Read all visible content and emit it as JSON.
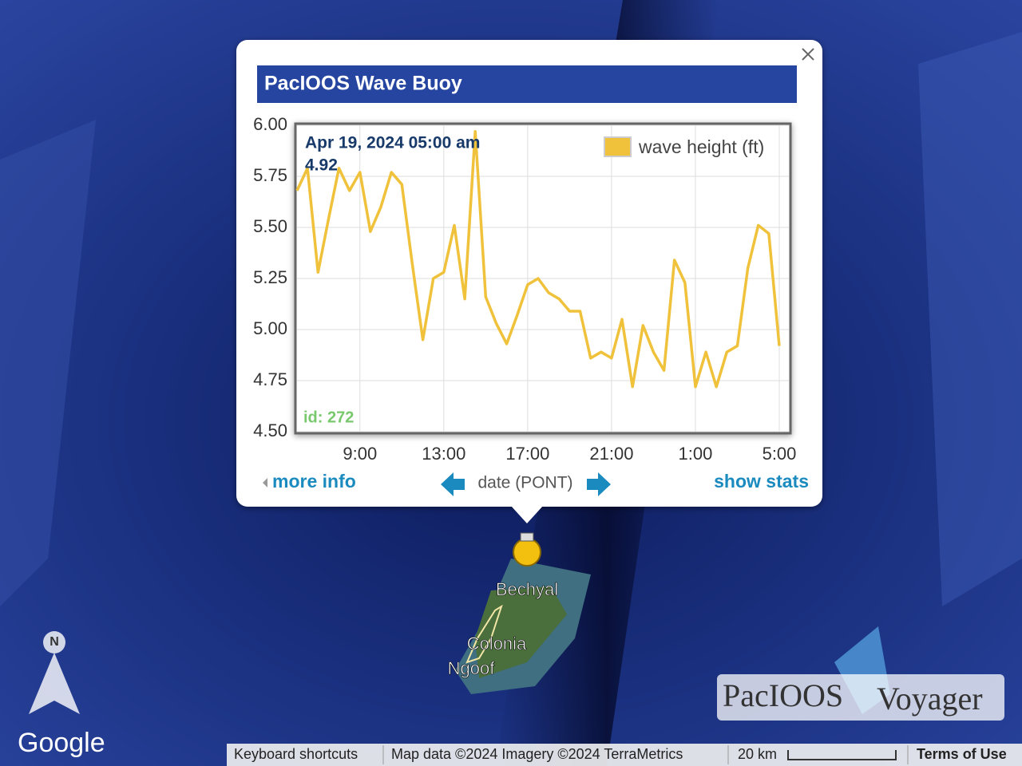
{
  "chart_data": {
    "type": "line",
    "title": "PacIOOS Wave Buoy",
    "categories": [
      null,
      null,
      null,
      null,
      null,
      null,
      "9:00",
      null,
      null,
      null,
      null,
      null,
      null,
      null,
      "13:00",
      null,
      null,
      null,
      null,
      null,
      null,
      null,
      "17:00",
      null,
      null,
      null,
      null,
      null,
      null,
      null,
      "21:00",
      null,
      null,
      null,
      null,
      null,
      null,
      null,
      "1:00",
      null,
      null,
      null,
      null,
      null,
      null,
      null,
      "5:00"
    ],
    "series": [
      {
        "name": "wave height (ft)",
        "color": "#f0c23c",
        "values": [
          5.68,
          5.79,
          5.28,
          5.54,
          5.79,
          5.68,
          5.77,
          5.48,
          5.6,
          5.77,
          5.71,
          5.32,
          4.95,
          5.25,
          5.28,
          5.51,
          5.15,
          5.97,
          5.16,
          5.03,
          4.93,
          5.07,
          5.22,
          5.25,
          5.18,
          5.15,
          5.09,
          5.09,
          4.86,
          4.89,
          4.86,
          5.05,
          4.72,
          5.02,
          4.89,
          4.8,
          5.34,
          5.23,
          4.72,
          4.89,
          4.72,
          4.89,
          4.92,
          5.3,
          5.51,
          5.47,
          4.92
        ]
      }
    ],
    "ylim": [
      4.5,
      6.0
    ],
    "yticks": [
      {
        "value": 4.5,
        "label": "4.50"
      },
      {
        "value": 4.75,
        "label": "4.75"
      },
      {
        "value": 5.0,
        "label": "5.00"
      },
      {
        "value": 5.25,
        "label": "5.25"
      },
      {
        "value": 5.5,
        "label": "5.50"
      },
      {
        "value": 5.75,
        "label": "5.75"
      },
      {
        "value": 6.0,
        "label": "6.00"
      }
    ],
    "x_label": "date (PONT)",
    "annotations": [
      "Apr 19, 2024 05:00 am",
      "4.92",
      "id: 272"
    ],
    "grid": true,
    "legend": "top-right"
  },
  "links": {
    "more_info": "more info",
    "show_stats": "show stats"
  },
  "map_labels": [
    "Bechyal",
    "Colonia",
    "Ngoof"
  ],
  "compass": "N",
  "google": "Google",
  "logo": [
    "PacIOOS",
    "Voyager"
  ],
  "footer": {
    "shortcuts": "Keyboard shortcuts",
    "map_data": "Map data ©2024 Imagery ©2024 TerraMetrics",
    "scale": "20 km",
    "terms": "Terms of Use"
  }
}
